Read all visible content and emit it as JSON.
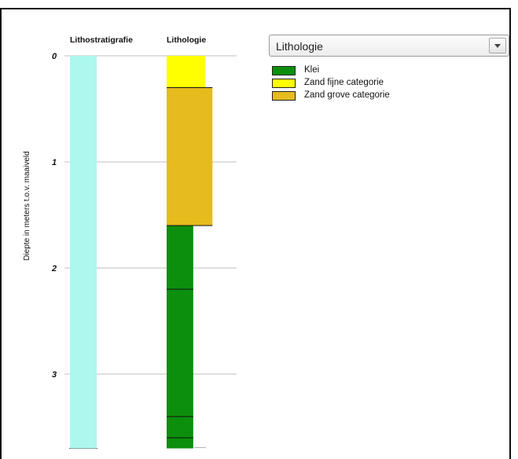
{
  "dropdown": {
    "selected": "Lithologie"
  },
  "legend": {
    "items": [
      {
        "label": "Klei",
        "color": "#0c8f0c"
      },
      {
        "label": "Zand fijne categorie",
        "color": "#ffff00"
      },
      {
        "label": "Zand grove categorie",
        "color": "#e6bb1d"
      }
    ]
  },
  "chart_data": {
    "type": "bar",
    "ylabel": "Diepte in meters t.o.v. maaiveld",
    "ylim": [
      0,
      3.7
    ],
    "y_inverted": true,
    "y_ticks": [
      "0",
      "1",
      "2",
      "3"
    ],
    "grid": true,
    "columns": [
      {
        "title": "Lithostratigrafie",
        "intervals": [
          {
            "top": 0,
            "bottom": 3.7,
            "color": "#adf7ef"
          }
        ]
      },
      {
        "title": "Lithologie",
        "intervals": [
          {
            "top": 0,
            "bottom": 0.3,
            "class": "Zand fijne categorie",
            "color": "#ffff00",
            "extent": 0.52
          },
          {
            "top": 0.3,
            "bottom": 1.6,
            "class": "Zand grove categorie",
            "color": "#e6bb1d",
            "extent": 0.62
          },
          {
            "top": 1.6,
            "bottom": 2.2,
            "class": "Klei",
            "color": "#0c8f0c",
            "extent": 0.36
          },
          {
            "top": 2.2,
            "bottom": 3.4,
            "class": "Klei",
            "color": "#0c8f0c",
            "extent": 0.36
          },
          {
            "top": 3.4,
            "bottom": 3.6,
            "class": "Klei",
            "color": "#0c8f0c",
            "extent": 0.36
          },
          {
            "top": 3.6,
            "bottom": 3.7,
            "class": "Klei",
            "color": "#0c8f0c",
            "extent": 0.36
          }
        ]
      }
    ]
  }
}
